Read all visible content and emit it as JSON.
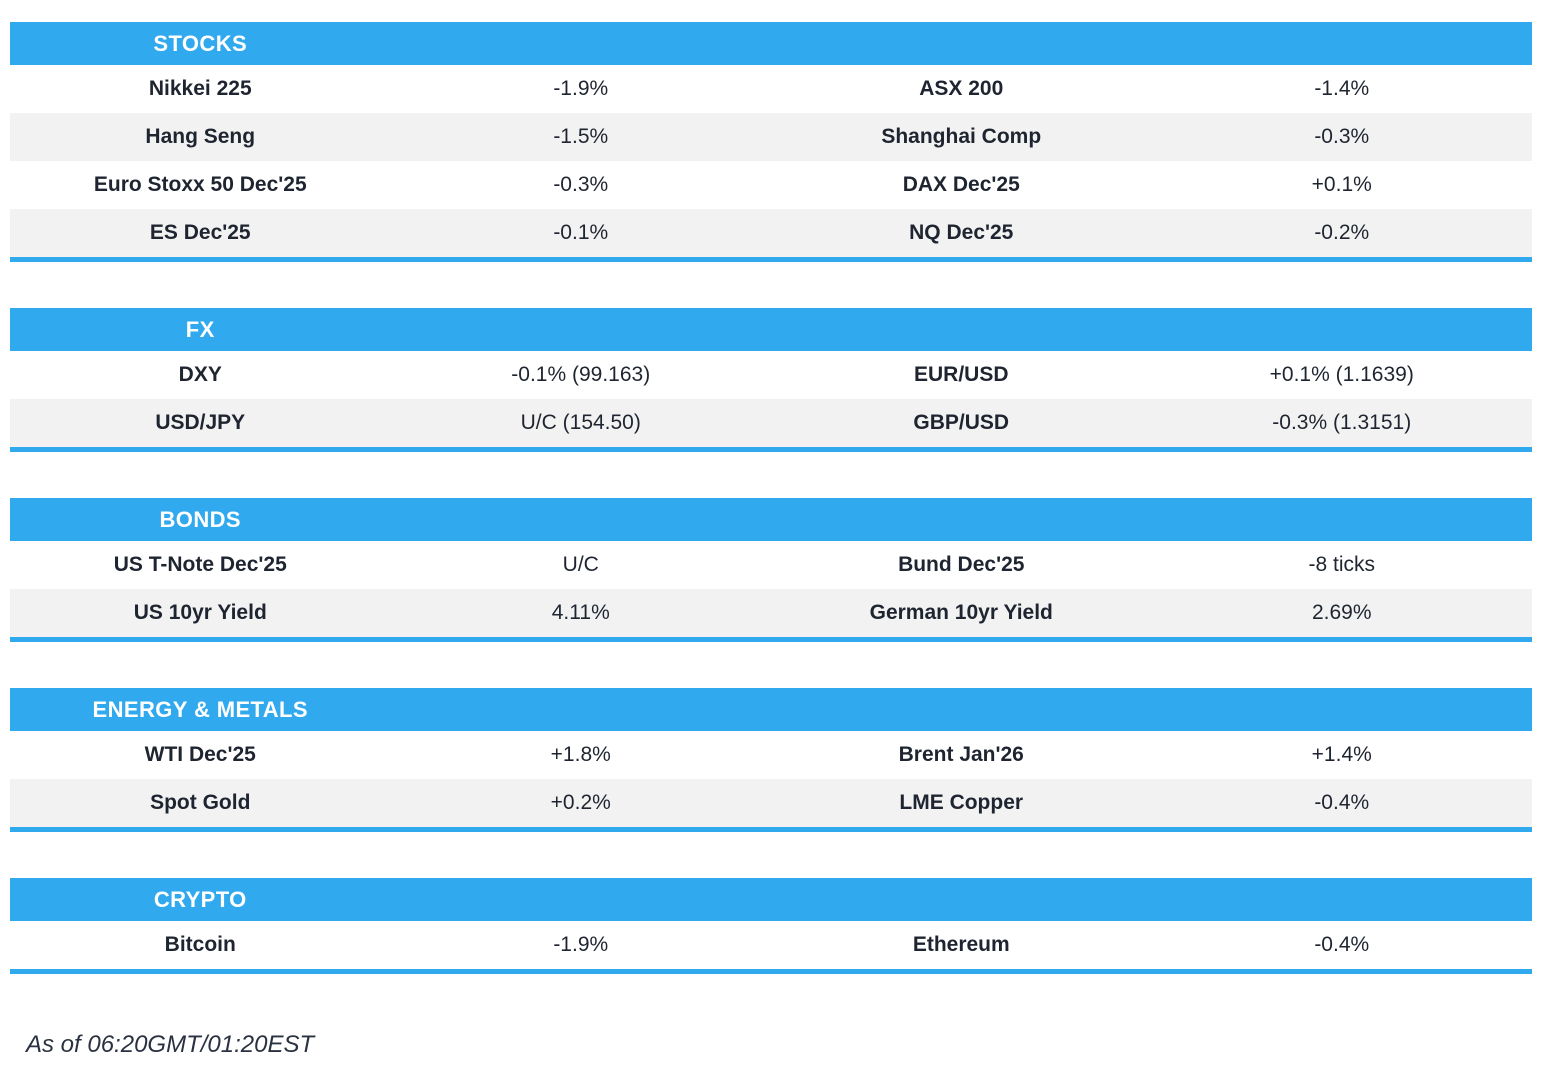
{
  "colors": {
    "accent": "#31a9ee",
    "stripe": "#f2f2f2",
    "text": "#1f2530",
    "header_text": "#ffffff"
  },
  "sections": [
    {
      "title": "STOCKS",
      "rows": [
        {
          "cells": [
            "Nikkei 225",
            "-1.9%",
            "ASX 200",
            "-1.4%"
          ]
        },
        {
          "cells": [
            "Hang Seng",
            "-1.5%",
            "Shanghai Comp",
            "-0.3%"
          ]
        },
        {
          "cells": [
            "Euro Stoxx 50 Dec'25",
            "-0.3%",
            "DAX Dec'25",
            "+0.1%"
          ]
        },
        {
          "cells": [
            "ES Dec'25",
            "-0.1%",
            "NQ Dec'25",
            "-0.2%"
          ]
        }
      ]
    },
    {
      "title": "FX",
      "rows": [
        {
          "cells": [
            "DXY",
            "-0.1% (99.163)",
            "EUR/USD",
            "+0.1% (1.1639)"
          ]
        },
        {
          "cells": [
            "USD/JPY",
            "U/C (154.50)",
            "GBP/USD",
            "-0.3% (1.3151)"
          ]
        }
      ]
    },
    {
      "title": "BONDS",
      "rows": [
        {
          "cells": [
            "US T-Note Dec'25",
            "U/C",
            "Bund Dec'25",
            "-8 ticks"
          ]
        },
        {
          "cells": [
            "US 10yr Yield",
            "4.11%",
            "German 10yr Yield",
            "2.69%"
          ]
        }
      ]
    },
    {
      "title": "ENERGY & METALS",
      "rows": [
        {
          "cells": [
            "WTI Dec'25",
            "+1.8%",
            "Brent Jan'26",
            "+1.4%"
          ]
        },
        {
          "cells": [
            "Spot Gold",
            "+0.2%",
            "LME Copper",
            "-0.4%"
          ]
        }
      ]
    },
    {
      "title": "CRYPTO",
      "rows": [
        {
          "cells": [
            "Bitcoin",
            "-1.9%",
            "Ethereum",
            "-0.4%"
          ]
        }
      ]
    }
  ],
  "footer": {
    "as_of": "As of 06:20GMT/01:20EST"
  },
  "chart_data": [
    {
      "type": "table",
      "title": "STOCKS",
      "rows": [
        [
          "Nikkei 225",
          "-1.9%",
          "ASX 200",
          "-1.4%"
        ],
        [
          "Hang Seng",
          "-1.5%",
          "Shanghai Comp",
          "-0.3%"
        ],
        [
          "Euro Stoxx 50 Dec'25",
          "-0.3%",
          "DAX Dec'25",
          "+0.1%"
        ],
        [
          "ES Dec'25",
          "-0.1%",
          "NQ Dec'25",
          "-0.2%"
        ]
      ]
    },
    {
      "type": "table",
      "title": "FX",
      "rows": [
        [
          "DXY",
          "-0.1% (99.163)",
          "EUR/USD",
          "+0.1% (1.1639)"
        ],
        [
          "USD/JPY",
          "U/C (154.50)",
          "GBP/USD",
          "-0.3% (1.3151)"
        ]
      ]
    },
    {
      "type": "table",
      "title": "BONDS",
      "rows": [
        [
          "US T-Note Dec'25",
          "U/C",
          "Bund Dec'25",
          "-8 ticks"
        ],
        [
          "US 10yr Yield",
          "4.11%",
          "German 10yr Yield",
          "2.69%"
        ]
      ]
    },
    {
      "type": "table",
      "title": "ENERGY & METALS",
      "rows": [
        [
          "WTI Dec'25",
          "+1.8%",
          "Brent Jan'26",
          "+1.4%"
        ],
        [
          "Spot Gold",
          "+0.2%",
          "LME Copper",
          "-0.4%"
        ]
      ]
    },
    {
      "type": "table",
      "title": "CRYPTO",
      "rows": [
        [
          "Bitcoin",
          "-1.9%",
          "Ethereum",
          "-0.4%"
        ]
      ]
    }
  ]
}
